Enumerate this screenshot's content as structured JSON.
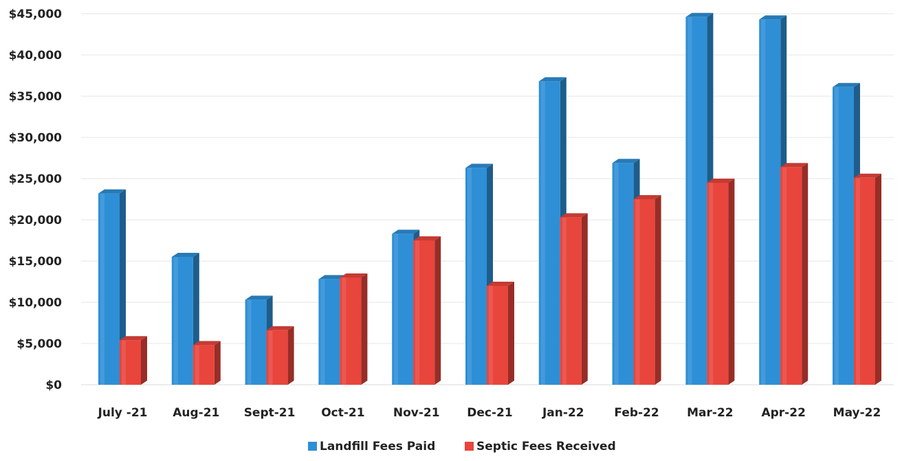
{
  "chart_data": {
    "type": "bar",
    "categories": [
      "July -21",
      "Aug-21",
      "Sept-21",
      "Oct-21",
      "Nov-21",
      "Dec-21",
      "Jan-22",
      "Feb-22",
      "Mar-22",
      "Apr-22",
      "May-22"
    ],
    "series": [
      {
        "name": "Landfill Fees Paid",
        "color": "#2e8fd6",
        "values": [
          23200,
          15500,
          10300,
          12800,
          18300,
          26300,
          36800,
          26900,
          44600,
          44300,
          36100
        ]
      },
      {
        "name": "Septic Fees  Received",
        "color": "#e8453c",
        "values": [
          5400,
          4800,
          6600,
          13000,
          17500,
          12000,
          20300,
          22500,
          24500,
          26400,
          25100
        ]
      }
    ],
    "y_tick_labels": [
      "$0",
      "$5,000",
      "$10,000",
      "$15,000",
      "$20,000",
      "$25,000",
      "$30,000",
      "$35,000",
      "$40,000",
      "$45,000"
    ],
    "ylim": [
      0,
      45000
    ],
    "y_tick_step": 5000,
    "grid": true,
    "legend_position": "bottom",
    "three_d": true
  }
}
